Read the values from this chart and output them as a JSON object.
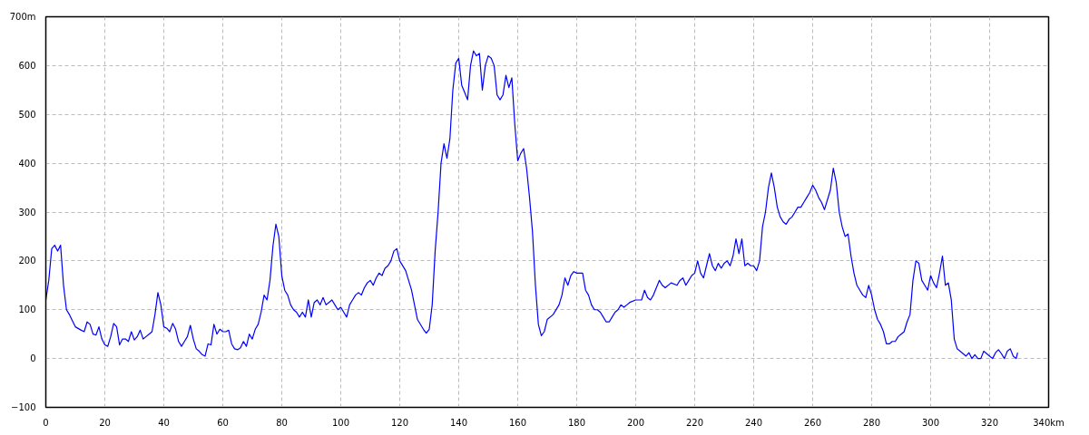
{
  "chart_data": {
    "type": "line",
    "xlim": [
      0,
      340
    ],
    "ylim": [
      -100,
      700
    ],
    "xticks": [
      0,
      20,
      40,
      60,
      80,
      100,
      120,
      140,
      160,
      180,
      200,
      220,
      240,
      260,
      280,
      300,
      320,
      {
        "value": 340,
        "label": "340km"
      }
    ],
    "yticks": [
      -100,
      0,
      100,
      200,
      300,
      400,
      500,
      600,
      {
        "value": 700,
        "label": "700m"
      }
    ],
    "grid": true,
    "line_style": "solid",
    "marker": "none",
    "series": [
      {
        "color": "#0000ff",
        "x": [
          0,
          1,
          2,
          3,
          4,
          5,
          6,
          7,
          8,
          10,
          12,
          13,
          14,
          15,
          16,
          17,
          18,
          19,
          20,
          21,
          22,
          23,
          24,
          25,
          26,
          27,
          28,
          29,
          30,
          31,
          32,
          33,
          34,
          35,
          36,
          37,
          38,
          39,
          40,
          41,
          42,
          43,
          44,
          45,
          46,
          47,
          48,
          49,
          50,
          51,
          52,
          53,
          54,
          55,
          56,
          57,
          58,
          59,
          60,
          61,
          62,
          63,
          64,
          65,
          66,
          67,
          68,
          69,
          70,
          71,
          72,
          73,
          74,
          75,
          76,
          77,
          78,
          79,
          80,
          81,
          82,
          83,
          84,
          85,
          86,
          87,
          88,
          89,
          90,
          91,
          92,
          93,
          94,
          95,
          96,
          97,
          98,
          99,
          100,
          101,
          102,
          103,
          104,
          105,
          106,
          107,
          108,
          109,
          110,
          111,
          112,
          113,
          114,
          115,
          116,
          117,
          118,
          119,
          120,
          122,
          124,
          126,
          128,
          129,
          130,
          131,
          132,
          133,
          134,
          135,
          136,
          137,
          138,
          139,
          140,
          141,
          142,
          143,
          144,
          145,
          146,
          147,
          148,
          149,
          150,
          151,
          152,
          153,
          154,
          155,
          156,
          157,
          158,
          159,
          160,
          161,
          162,
          163,
          164,
          165,
          166,
          167,
          168,
          169,
          170,
          172,
          174,
          175,
          176,
          177,
          178,
          179,
          180,
          182,
          183,
          184,
          185,
          186,
          187,
          188,
          189,
          190,
          191,
          192,
          193,
          194,
          195,
          196,
          197,
          198,
          200,
          202,
          203,
          204,
          205,
          206,
          207,
          208,
          209,
          210,
          212,
          214,
          215,
          216,
          217,
          218,
          219,
          220,
          221,
          222,
          223,
          224,
          225,
          226,
          227,
          228,
          229,
          230,
          231,
          232,
          233,
          234,
          235,
          236,
          237,
          238,
          239,
          240,
          241,
          242,
          243,
          244,
          245,
          246,
          247,
          248,
          249,
          250,
          251,
          252,
          253,
          254,
          255,
          256,
          257,
          258,
          259,
          260,
          261,
          262,
          263,
          264,
          265,
          266,
          267,
          268,
          269,
          270,
          271,
          272,
          273,
          274,
          275,
          276,
          277,
          278,
          279,
          280,
          281,
          282,
          283,
          284,
          285,
          286,
          287,
          288,
          289,
          290,
          291,
          292,
          293,
          294,
          295,
          296,
          297,
          298,
          299,
          300,
          301,
          302,
          303,
          304,
          305,
          306,
          307,
          308,
          309,
          310,
          311,
          312,
          313,
          314,
          315,
          316,
          317,
          318,
          319,
          320,
          321,
          322,
          323,
          324,
          325,
          326,
          327,
          328,
          329,
          329.5
        ],
        "values": [
          120,
          160,
          225,
          232,
          220,
          232,
          150,
          100,
          90,
          65,
          58,
          55,
          75,
          70,
          50,
          48,
          65,
          40,
          28,
          25,
          45,
          72,
          65,
          28,
          40,
          40,
          35,
          55,
          38,
          45,
          58,
          40,
          45,
          50,
          55,
          90,
          135,
          110,
          65,
          62,
          55,
          72,
          60,
          35,
          25,
          35,
          45,
          68,
          40,
          20,
          15,
          8,
          5,
          30,
          28,
          70,
          50,
          60,
          55,
          55,
          58,
          30,
          20,
          18,
          22,
          35,
          25,
          50,
          40,
          60,
          70,
          95,
          130,
          120,
          160,
          230,
          275,
          250,
          170,
          140,
          130,
          110,
          100,
          95,
          85,
          95,
          85,
          120,
          85,
          115,
          120,
          110,
          125,
          110,
          115,
          120,
          110,
          100,
          105,
          95,
          85,
          110,
          120,
          130,
          135,
          130,
          145,
          155,
          160,
          150,
          165,
          175,
          170,
          185,
          190,
          200,
          220,
          225,
          200,
          180,
          140,
          80,
          60,
          52,
          60,
          110,
          220,
          300,
          400,
          440,
          410,
          450,
          550,
          605,
          615,
          560,
          545,
          530,
          600,
          630,
          620,
          625,
          550,
          600,
          620,
          615,
          600,
          540,
          530,
          540,
          580,
          555,
          575,
          480,
          405,
          420,
          430,
          390,
          330,
          260,
          150,
          70,
          47,
          55,
          80,
          90,
          110,
          130,
          165,
          150,
          170,
          178,
          175,
          175,
          140,
          130,
          110,
          100,
          100,
          95,
          85,
          75,
          75,
          85,
          95,
          100,
          110,
          105,
          110,
          115,
          120,
          120,
          140,
          125,
          120,
          130,
          145,
          160,
          150,
          145,
          155,
          150,
          160,
          165,
          150,
          160,
          170,
          175,
          200,
          175,
          165,
          190,
          215,
          190,
          180,
          195,
          185,
          195,
          200,
          190,
          210,
          245,
          215,
          245,
          190,
          195,
          190,
          190,
          180,
          200,
          270,
          300,
          350,
          380,
          350,
          310,
          290,
          280,
          275,
          285,
          290,
          300,
          310,
          310,
          320,
          330,
          340,
          355,
          345,
          330,
          320,
          305,
          325,
          345,
          390,
          360,
          300,
          270,
          250,
          255,
          210,
          175,
          150,
          140,
          130,
          125,
          150,
          130,
          100,
          80,
          70,
          55,
          30,
          30,
          35,
          35,
          45,
          50,
          55,
          75,
          90,
          160,
          200,
          195,
          160,
          150,
          140,
          170,
          155,
          145,
          175,
          210,
          150,
          155,
          120,
          40,
          20,
          15,
          10,
          5,
          12,
          0,
          8,
          0,
          0,
          15,
          10,
          5,
          0,
          12,
          18,
          10,
          0,
          15,
          20,
          5,
          0,
          12
        ]
      }
    ]
  }
}
